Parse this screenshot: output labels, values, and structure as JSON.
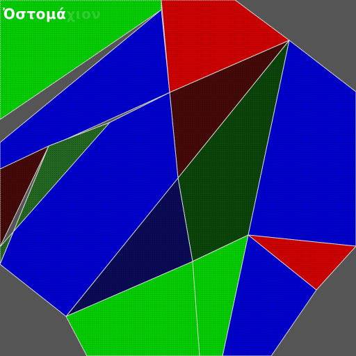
{
  "game": {
    "title_part_a": "Ὀστομά",
    "title_part_b": "χιον",
    "background_color": "#555555",
    "outline_color": "#d8d8d8",
    "palette": {
      "blue": "#0000cc",
      "green": "#00cc00",
      "red": "#cc0000",
      "dark_blue": "#0a0a55",
      "dark_red": "#440a0a",
      "dark_green": "#0a440a",
      "olive": "#226622"
    },
    "pieces": [
      {
        "name": "piece-green-top-left",
        "color": "green"
      },
      {
        "name": "piece-blue-top-left",
        "color": "blue"
      },
      {
        "name": "piece-red-top",
        "color": "red"
      },
      {
        "name": "piece-dark-red-center",
        "color": "dark_red"
      },
      {
        "name": "piece-dark-green-center",
        "color": "dark_green"
      },
      {
        "name": "piece-blue-right",
        "color": "blue"
      },
      {
        "name": "piece-red-right",
        "color": "red"
      },
      {
        "name": "piece-blue-bottom-right",
        "color": "blue"
      },
      {
        "name": "piece-green-bottom-center",
        "color": "green"
      },
      {
        "name": "piece-green-bottom-left",
        "color": "green"
      },
      {
        "name": "piece-dark-blue-middle",
        "color": "dark_blue"
      },
      {
        "name": "piece-blue-middle-left",
        "color": "blue"
      },
      {
        "name": "piece-olive-left",
        "color": "olive"
      },
      {
        "name": "piece-dark-red-left",
        "color": "dark_red"
      }
    ]
  }
}
